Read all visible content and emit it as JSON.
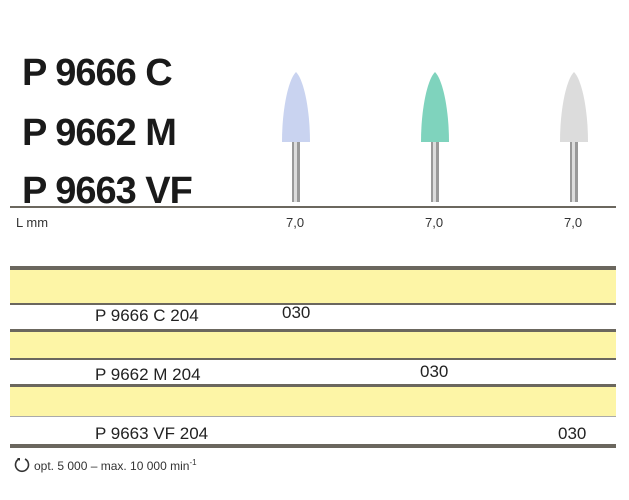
{
  "titles": [
    "P 9666 C",
    "P 9662 M",
    "P 9663 VF"
  ],
  "length_label": "L mm",
  "products": [
    {
      "color": "#c9d3f0",
      "length": "7,0"
    },
    {
      "color": "#7fd3bd",
      "length": "7,0"
    },
    {
      "color": "#dcdcdc",
      "length": "7,0"
    }
  ],
  "rows": [
    {
      "code": "P 9666 C 204",
      "qty": "030"
    },
    {
      "code": "P 9662 M 204",
      "qty": "030"
    },
    {
      "code": "P 9663 VF 204",
      "qty": "030"
    }
  ],
  "footer": {
    "icon": "rotation-icon",
    "text": "opt. 5 000 – max. 10 000 min",
    "sup": "-1"
  }
}
